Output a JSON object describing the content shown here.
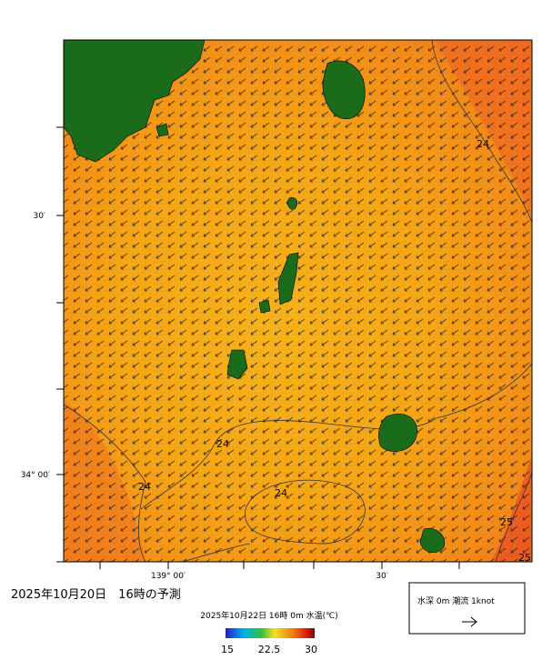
{
  "map": {
    "title": "2025年10月20日　16時の予測",
    "subtitle": "2025年10月22日 16時 0m 水温(℃)",
    "lat_labels": [
      "30′",
      "34° 00′"
    ],
    "lon_labels": [
      "139° 00′",
      "30′"
    ],
    "contour_labels": [
      "24",
      "24",
      "24",
      "24",
      "25",
      "25"
    ],
    "colorbar": {
      "ticks": [
        15,
        22.5,
        30
      ]
    },
    "legend": "水深 0m 潮流 1knot"
  }
}
